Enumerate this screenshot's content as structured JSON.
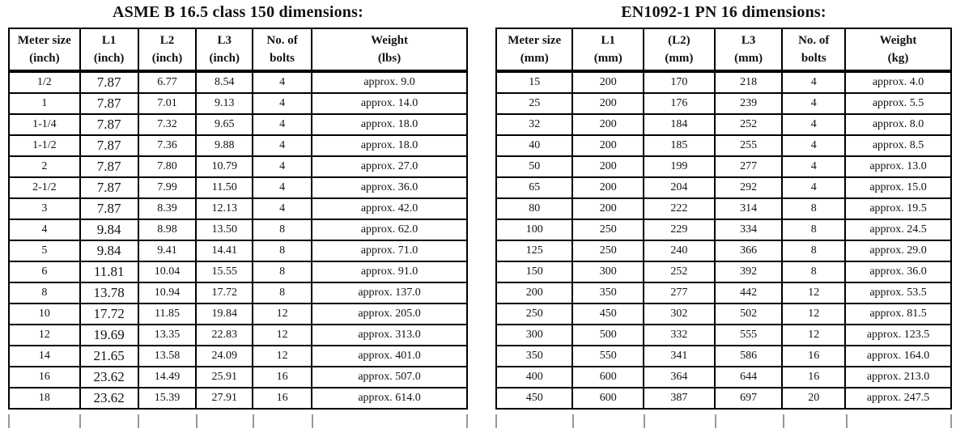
{
  "tables": [
    {
      "title": "ASME B 16.5 class 150 dimensions:",
      "headers": [
        {
          "line1": "Meter size",
          "line2": "(inch)"
        },
        {
          "line1": "L1",
          "line2": "(inch)"
        },
        {
          "line1": "L2",
          "line2": "(inch)"
        },
        {
          "line1": "L3",
          "line2": "(inch)"
        },
        {
          "line1": "No. of",
          "line2": "bolts"
        },
        {
          "line1": "Weight",
          "line2": "(lbs)"
        }
      ],
      "rows": [
        [
          "1/2",
          "7.87",
          "6.77",
          "8.54",
          "4",
          "approx. 9.0"
        ],
        [
          "1",
          "7.87",
          "7.01",
          "9.13",
          "4",
          "approx. 14.0"
        ],
        [
          "1-1/4",
          "7.87",
          "7.32",
          "9.65",
          "4",
          "approx. 18.0"
        ],
        [
          "1-1/2",
          "7.87",
          "7.36",
          "9.88",
          "4",
          "approx. 18.0"
        ],
        [
          "2",
          "7.87",
          "7.80",
          "10.79",
          "4",
          "approx. 27.0"
        ],
        [
          "2-1/2",
          "7.87",
          "7.99",
          "11.50",
          "4",
          "approx. 36.0"
        ],
        [
          "3",
          "7.87",
          "8.39",
          "12.13",
          "4",
          "approx. 42.0"
        ],
        [
          "4",
          "9.84",
          "8.98",
          "13.50",
          "8",
          "approx. 62.0"
        ],
        [
          "5",
          "9.84",
          "9.41",
          "14.41",
          "8",
          "approx. 71.0"
        ],
        [
          "6",
          "11.81",
          "10.04",
          "15.55",
          "8",
          "approx. 91.0"
        ],
        [
          "8",
          "13.78",
          "10.94",
          "17.72",
          "8",
          "approx. 137.0"
        ],
        [
          "10",
          "17.72",
          "11.85",
          "19.84",
          "12",
          "approx. 205.0"
        ],
        [
          "12",
          "19.69",
          "13.35",
          "22.83",
          "12",
          "approx. 313.0"
        ],
        [
          "14",
          "21.65",
          "13.58",
          "24.09",
          "12",
          "approx. 401.0"
        ],
        [
          "16",
          "23.62",
          "14.49",
          "25.91",
          "16",
          "approx. 507.0"
        ],
        [
          "18",
          "23.62",
          "15.39",
          "27.91",
          "16",
          "approx. 614.0"
        ]
      ]
    },
    {
      "title": "EN1092-1 PN 16 dimensions:",
      "headers": [
        {
          "line1": "Meter size",
          "line2": "(mm)"
        },
        {
          "line1": "L1",
          "line2": "(mm)"
        },
        {
          "line1": "(L2)",
          "line2": "(mm)"
        },
        {
          "line1": "L3",
          "line2": "(mm)"
        },
        {
          "line1": "No. of",
          "line2": "bolts"
        },
        {
          "line1": "Weight",
          "line2": "(kg)"
        }
      ],
      "rows": [
        [
          "15",
          "200",
          "170",
          "218",
          "4",
          "approx. 4.0"
        ],
        [
          "25",
          "200",
          "176",
          "239",
          "4",
          "approx. 5.5"
        ],
        [
          "32",
          "200",
          "184",
          "252",
          "4",
          "approx. 8.0"
        ],
        [
          "40",
          "200",
          "185",
          "255",
          "4",
          "approx. 8.5"
        ],
        [
          "50",
          "200",
          "199",
          "277",
          "4",
          "approx. 13.0"
        ],
        [
          "65",
          "200",
          "204",
          "292",
          "4",
          "approx. 15.0"
        ],
        [
          "80",
          "200",
          "222",
          "314",
          "8",
          "approx. 19.5"
        ],
        [
          "100",
          "250",
          "229",
          "334",
          "8",
          "approx. 24.5"
        ],
        [
          "125",
          "250",
          "240",
          "366",
          "8",
          "approx. 29.0"
        ],
        [
          "150",
          "300",
          "252",
          "392",
          "8",
          "approx. 36.0"
        ],
        [
          "200",
          "350",
          "277",
          "442",
          "12",
          "approx. 53.5"
        ],
        [
          "250",
          "450",
          "302",
          "502",
          "12",
          "approx. 81.5"
        ],
        [
          "300",
          "500",
          "332",
          "555",
          "12",
          "approx. 123.5"
        ],
        [
          "350",
          "550",
          "341",
          "586",
          "16",
          "approx. 164.0"
        ],
        [
          "400",
          "600",
          "364",
          "644",
          "16",
          "approx. 213.0"
        ],
        [
          "450",
          "600",
          "387",
          "697",
          "20",
          "approx. 247.5"
        ]
      ]
    }
  ]
}
